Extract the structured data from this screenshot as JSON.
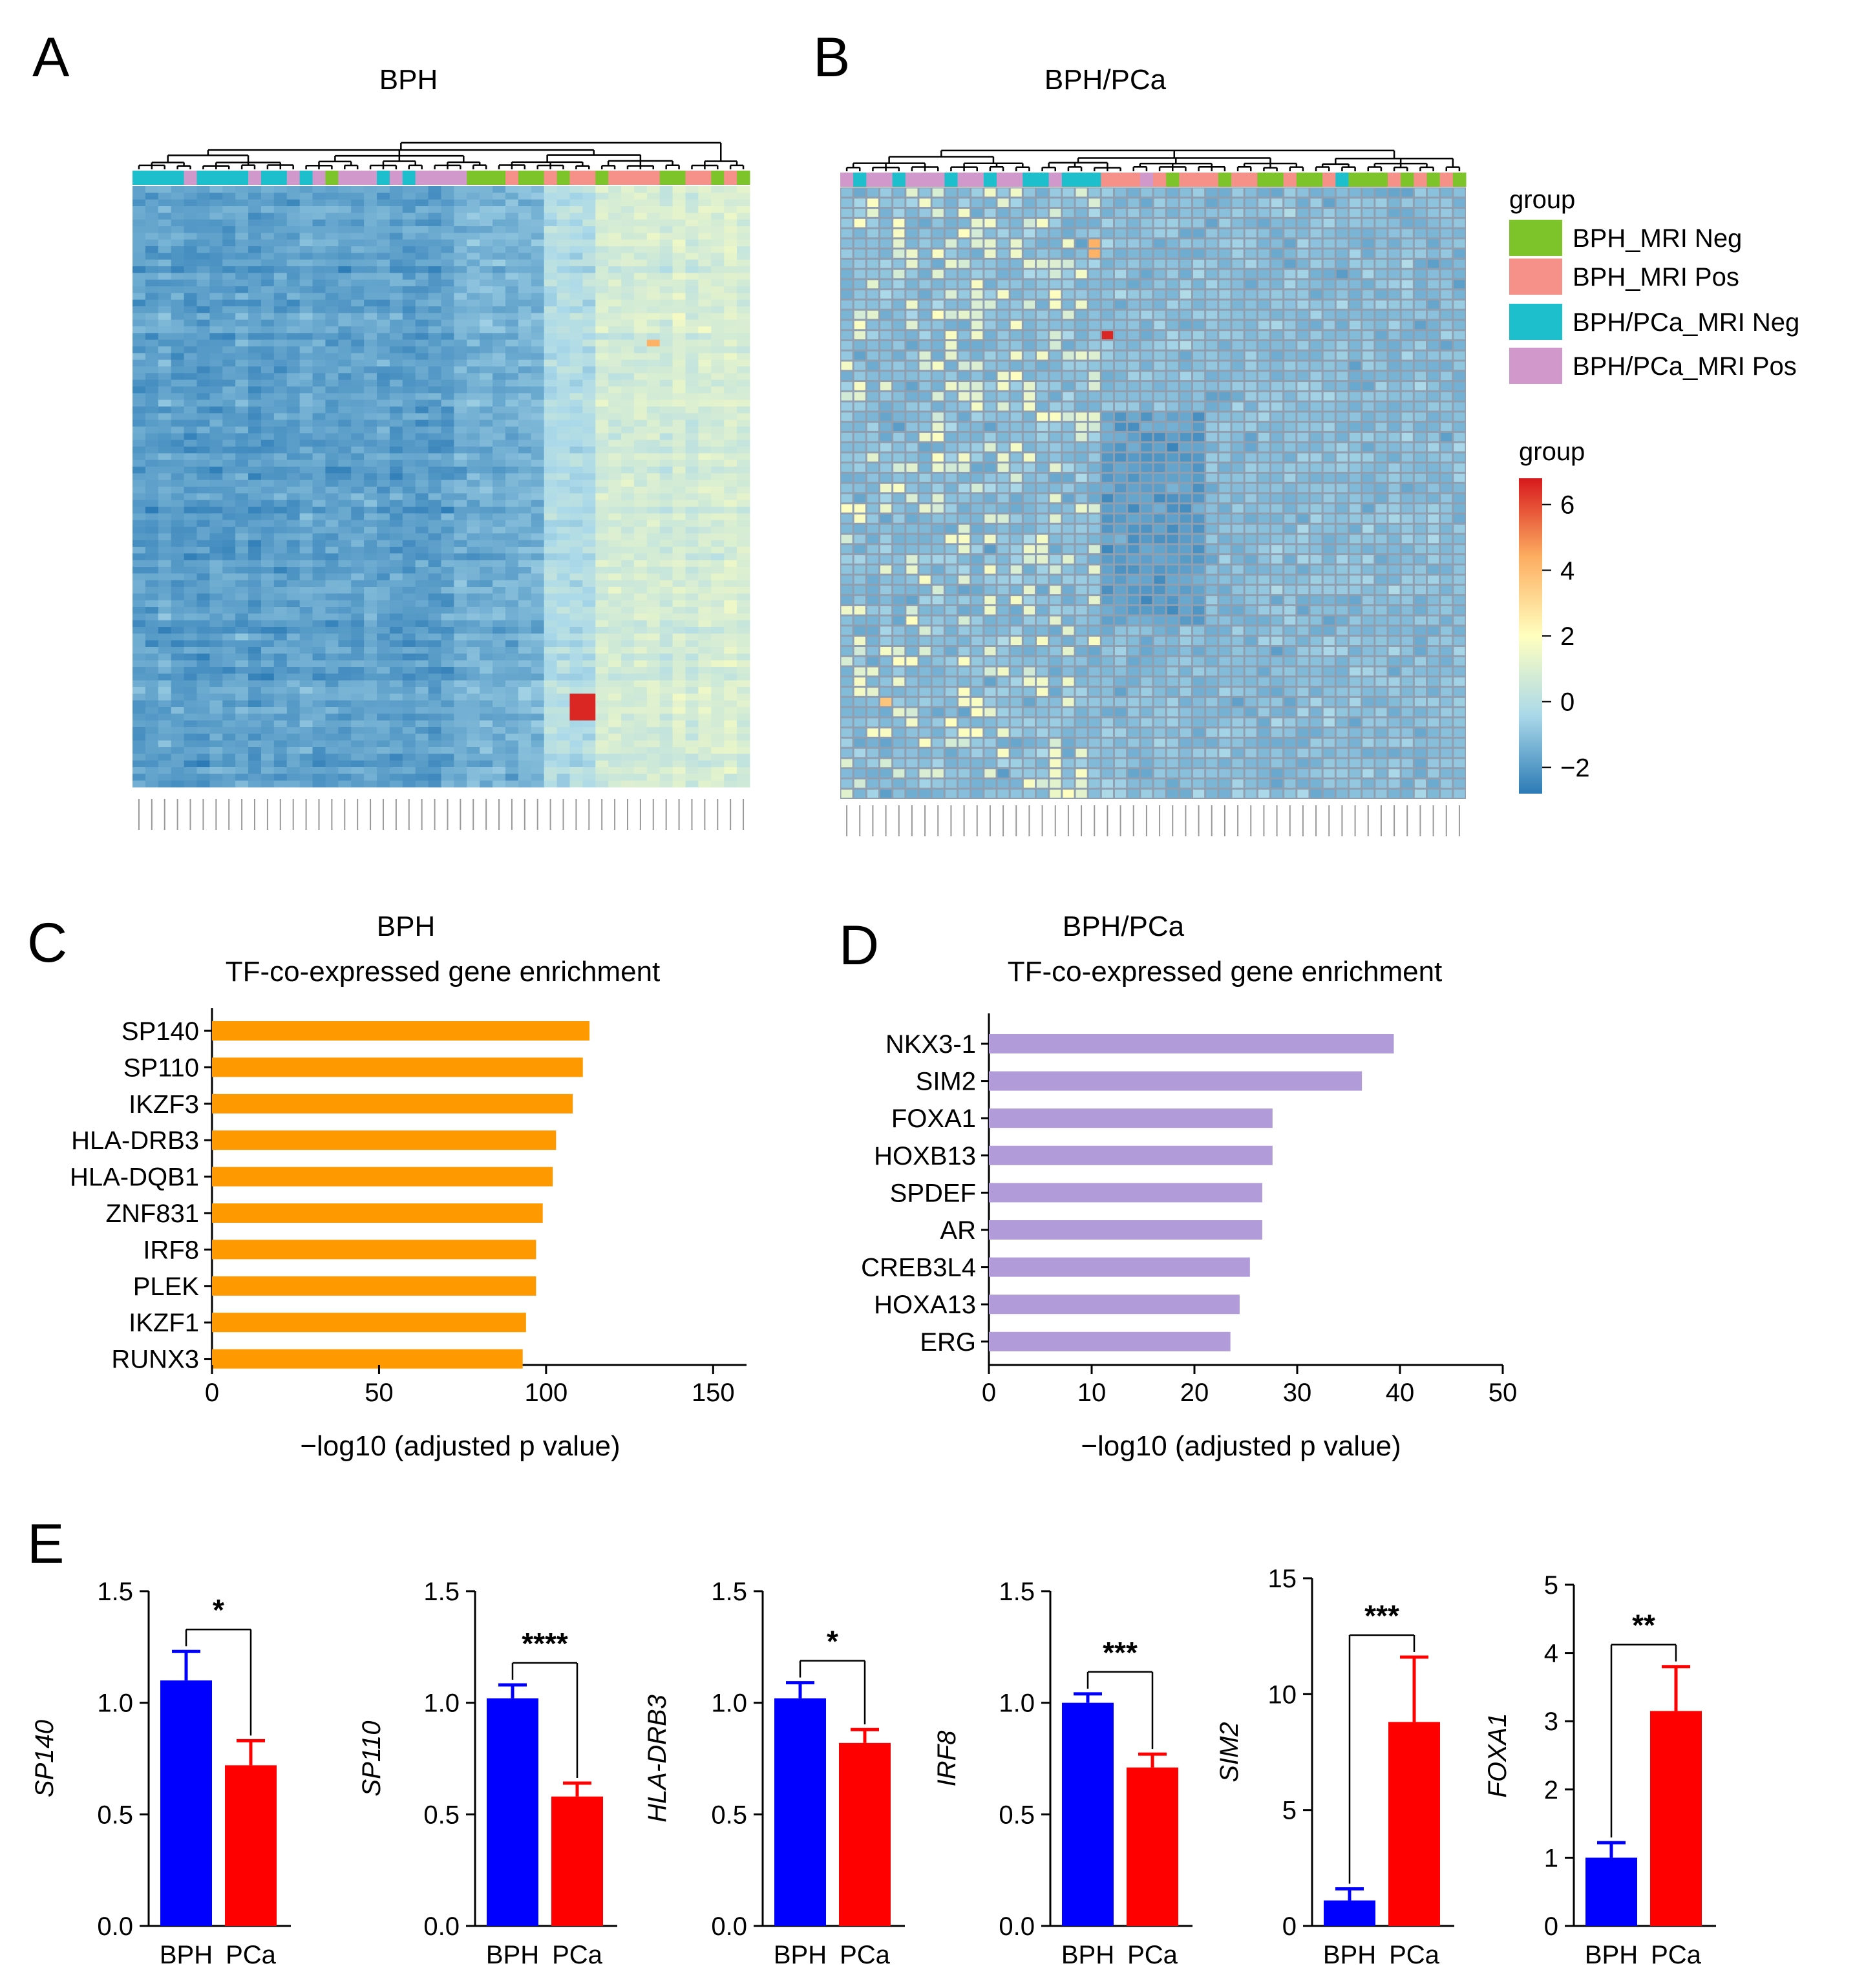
{
  "panels": {
    "A": {
      "label": "A",
      "title": "BPH"
    },
    "B": {
      "label": "B",
      "title": "BPH/PCa"
    },
    "C": {
      "label": "C",
      "title": "BPH",
      "subtitle": "TF-co-expressed gene enrichment"
    },
    "D": {
      "label": "D",
      "title": "BPH/PCa",
      "subtitle": "TF-co-expressed gene enrichment"
    },
    "E": {
      "label": "E"
    }
  },
  "legend": {
    "group_title": "group",
    "groups": [
      {
        "name": "BPH_MRI Neg",
        "color": "#7cc42a"
      },
      {
        "name": "BPH_MRI Pos",
        "color": "#f6918a"
      },
      {
        "name": "BPH/PCa_MRI Neg",
        "color": "#1cbfcb"
      },
      {
        "name": "BPH/PCa_MRI Pos",
        "color": "#d199cb"
      }
    ],
    "scale_title": "group",
    "scale_ticks": [
      "6",
      "4",
      "2",
      "0",
      "−2"
    ],
    "scale_values": [
      6,
      4,
      2,
      0,
      -2
    ],
    "scale_range": [
      -2.8,
      6.8
    ],
    "scale_colors": [
      "#2c7bb6",
      "#abd9e9",
      "#ffffbf",
      "#fdae61",
      "#d7191c"
    ]
  },
  "colors": {
    "bph_bar": "#0000ff",
    "pca_bar": "#ff0000",
    "c_bar": "#ff9900",
    "d_bar": "#b19cd9"
  },
  "chart_data": [
    {
      "panel": "A",
      "type": "heatmap",
      "title": "BPH",
      "n_columns": 48,
      "n_rows": 90,
      "value_range": [
        -2,
        6
      ],
      "column_groups": [
        "BPH/PCa_MRI Neg",
        "BPH/PCa_MRI Neg",
        "BPH/PCa_MRI Neg",
        "BPH/PCa_MRI Neg",
        "BPH/PCa_MRI Pos",
        "BPH/PCa_MRI Neg",
        "BPH/PCa_MRI Neg",
        "BPH/PCa_MRI Neg",
        "BPH/PCa_MRI Neg",
        "BPH/PCa_MRI Pos",
        "BPH/PCa_MRI Neg",
        "BPH/PCa_MRI Neg",
        "BPH/PCa_MRI Pos",
        "BPH/PCa_MRI Neg",
        "BPH/PCa_MRI Pos",
        "BPH_MRI Neg",
        "BPH/PCa_MRI Pos",
        "BPH/PCa_MRI Pos",
        "BPH/PCa_MRI Pos",
        "BPH/PCa_MRI Neg",
        "BPH/PCa_MRI Pos",
        "BPH/PCa_MRI Neg",
        "BPH/PCa_MRI Pos",
        "BPH/PCa_MRI Pos",
        "BPH/PCa_MRI Pos",
        "BPH/PCa_MRI Pos",
        "BPH_MRI Neg",
        "BPH_MRI Neg",
        "BPH_MRI Neg",
        "BPH_MRI Pos",
        "BPH_MRI Neg",
        "BPH_MRI Neg",
        "BPH_MRI Pos",
        "BPH_MRI Neg",
        "BPH_MRI Pos",
        "BPH_MRI Pos",
        "BPH_MRI Neg",
        "BPH_MRI Pos",
        "BPH_MRI Pos",
        "BPH_MRI Pos",
        "BPH_MRI Pos",
        "BPH_MRI Neg",
        "BPH_MRI Neg",
        "BPH_MRI Pos",
        "BPH_MRI Pos",
        "BPH_MRI Neg",
        "BPH_MRI Pos",
        "BPH_MRI Neg"
      ]
    },
    {
      "panel": "B",
      "type": "heatmap",
      "title": "BPH/PCa",
      "n_columns": 48,
      "n_rows": 60,
      "value_range": [
        -2,
        6
      ],
      "column_groups": [
        "BPH/PCa_MRI Pos",
        "BPH/PCa_MRI Neg",
        "BPH/PCa_MRI Pos",
        "BPH/PCa_MRI Pos",
        "BPH/PCa_MRI Neg",
        "BPH/PCa_MRI Pos",
        "BPH/PCa_MRI Pos",
        "BPH/PCa_MRI Pos",
        "BPH/PCa_MRI Neg",
        "BPH/PCa_MRI Pos",
        "BPH/PCa_MRI Pos",
        "BPH/PCa_MRI Neg",
        "BPH/PCa_MRI Pos",
        "BPH/PCa_MRI Pos",
        "BPH/PCa_MRI Neg",
        "BPH/PCa_MRI Neg",
        "BPH/PCa_MRI Pos",
        "BPH/PCa_MRI Neg",
        "BPH/PCa_MRI Neg",
        "BPH/PCa_MRI Neg",
        "BPH_MRI Pos",
        "BPH_MRI Pos",
        "BPH_MRI Pos",
        "BPH/PCa_MRI Pos",
        "BPH_MRI Pos",
        "BPH_MRI Neg",
        "BPH_MRI Pos",
        "BPH_MRI Pos",
        "BPH_MRI Pos",
        "BPH_MRI Neg",
        "BPH_MRI Pos",
        "BPH_MRI Pos",
        "BPH_MRI Neg",
        "BPH_MRI Neg",
        "BPH_MRI Pos",
        "BPH_MRI Neg",
        "BPH_MRI Neg",
        "BPH_MRI Pos",
        "BPH/PCa_MRI Neg",
        "BPH_MRI Neg",
        "BPH_MRI Neg",
        "BPH_MRI Neg",
        "BPH_MRI Pos",
        "BPH_MRI Neg",
        "BPH_MRI Pos",
        "BPH_MRI Neg",
        "BPH_MRI Pos",
        "BPH_MRI Neg"
      ]
    },
    {
      "panel": "C",
      "type": "bar",
      "orientation": "horizontal",
      "title": "BPH",
      "subtitle": "TF-co-expressed gene enrichment",
      "xlabel": "−log10 (adjusted p value)",
      "xlim": [
        0,
        160
      ],
      "xticks": [
        "0",
        "50",
        "100",
        "150"
      ],
      "xtick_values": [
        0,
        50,
        100,
        150
      ],
      "categories": [
        "SP140",
        "SP110",
        "IKZF3",
        "HLA-DRB3",
        "HLA-DQB1",
        "ZNF831",
        "IRF8",
        "PLEK",
        "IKZF1",
        "RUNX3"
      ],
      "values": [
        113,
        111,
        108,
        103,
        102,
        99,
        97,
        97,
        94,
        93
      ]
    },
    {
      "panel": "D",
      "type": "bar",
      "orientation": "horizontal",
      "title": "BPH/PCa",
      "subtitle": "TF-co-expressed gene enrichment",
      "xlabel": "−log10 (adjusted p value)",
      "xlim": [
        0,
        50
      ],
      "xticks": [
        "0",
        "10",
        "20",
        "30",
        "40",
        "50"
      ],
      "xtick_values": [
        0,
        10,
        20,
        30,
        40,
        50
      ],
      "categories": [
        "NKX3-1",
        "SIM2",
        "FOXA1",
        "HOXB13",
        "SPDEF",
        "AR",
        "CREB3L4",
        "HOXA13",
        "ERG"
      ],
      "values": [
        39.4,
        36.3,
        27.6,
        27.6,
        26.6,
        26.6,
        25.4,
        24.4,
        23.5
      ]
    },
    {
      "panel": "E",
      "type": "bar",
      "ylabel": "SP140",
      "ylim": [
        0,
        1.5
      ],
      "yticks": [
        "0.0",
        "0.5",
        "1.0",
        "1.5"
      ],
      "ytick_values": [
        0,
        0.5,
        1,
        1.5
      ],
      "categories": [
        "BPH",
        "PCa"
      ],
      "values": [
        1.1,
        0.72
      ],
      "errors": [
        0.13,
        0.11
      ],
      "significance": "*"
    },
    {
      "panel": "E",
      "type": "bar",
      "ylabel": "SP110",
      "ylim": [
        0,
        1.5
      ],
      "yticks": [
        "0.0",
        "0.5",
        "1.0",
        "1.5"
      ],
      "ytick_values": [
        0,
        0.5,
        1,
        1.5
      ],
      "categories": [
        "BPH",
        "PCa"
      ],
      "values": [
        1.02,
        0.58
      ],
      "errors": [
        0.06,
        0.06
      ],
      "significance": "****"
    },
    {
      "panel": "E",
      "type": "bar",
      "ylabel": "HLA-DRB3",
      "ylim": [
        0,
        1.5
      ],
      "yticks": [
        "0.0",
        "0.5",
        "1.0",
        "1.5"
      ],
      "ytick_values": [
        0,
        0.5,
        1,
        1.5
      ],
      "categories": [
        "BPH",
        "PCa"
      ],
      "values": [
        1.02,
        0.82
      ],
      "errors": [
        0.07,
        0.06
      ],
      "significance": "*"
    },
    {
      "panel": "E",
      "type": "bar",
      "ylabel": "IRF8",
      "ylim": [
        0,
        1.5
      ],
      "yticks": [
        "0.0",
        "0.5",
        "1.0",
        "1.5"
      ],
      "ytick_values": [
        0,
        0.5,
        1,
        1.5
      ],
      "categories": [
        "BPH",
        "PCa"
      ],
      "values": [
        1.0,
        0.71
      ],
      "errors": [
        0.04,
        0.06
      ],
      "significance": "***"
    },
    {
      "panel": "E",
      "type": "bar",
      "ylabel": "SIM2",
      "ylim": [
        0,
        15
      ],
      "yticks": [
        "0",
        "5",
        "10",
        "15"
      ],
      "ytick_values": [
        0,
        5,
        10,
        15
      ],
      "categories": [
        "BPH",
        "PCa"
      ],
      "values": [
        1.1,
        8.8
      ],
      "errors": [
        0.5,
        2.8
      ],
      "significance": "***"
    },
    {
      "panel": "E",
      "type": "bar",
      "ylabel": "FOXA1",
      "ylim": [
        0,
        5
      ],
      "yticks": [
        "0",
        "1",
        "2",
        "3",
        "4",
        "5"
      ],
      "ytick_values": [
        0,
        1,
        2,
        3,
        4,
        5
      ],
      "categories": [
        "BPH",
        "PCa"
      ],
      "values": [
        1.0,
        3.15
      ],
      "errors": [
        0.22,
        0.65
      ],
      "significance": "**"
    }
  ]
}
